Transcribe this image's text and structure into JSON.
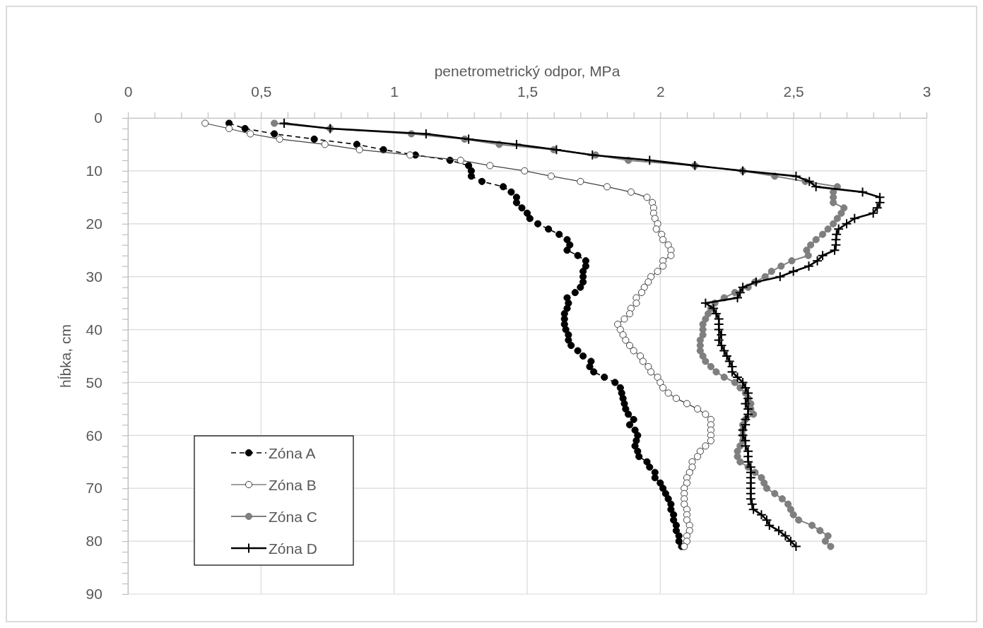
{
  "chart_data": {
    "type": "line",
    "xlabel": "penetrometrický odpor, MPa",
    "ylabel": "hĺbka, cm",
    "xlim": [
      0,
      3
    ],
    "ylim": [
      90,
      0
    ],
    "xticks": [
      0,
      {
        "value": 0.1,
        "label": null
      },
      {
        "value": 0.2,
        "label": null
      },
      {
        "value": 0.3,
        "label": null
      },
      {
        "value": 0.4,
        "label": null
      },
      {
        "value": 0.5,
        "label": "0,5"
      },
      {
        "value": 0.6,
        "label": null
      },
      {
        "value": 0.7,
        "label": null
      },
      {
        "value": 0.8,
        "label": null
      },
      {
        "value": 0.9,
        "label": null
      },
      1,
      {
        "value": 1.1,
        "label": null
      },
      {
        "value": 1.2,
        "label": null
      },
      {
        "value": 1.3,
        "label": null
      },
      {
        "value": 1.4,
        "label": null
      },
      {
        "value": 1.5,
        "label": "1,5"
      },
      {
        "value": 1.6,
        "label": null
      },
      {
        "value": 1.7,
        "label": null
      },
      {
        "value": 1.8,
        "label": null
      },
      {
        "value": 1.9,
        "label": null
      },
      2,
      {
        "value": 2.1,
        "label": null
      },
      {
        "value": 2.2,
        "label": null
      },
      {
        "value": 2.3,
        "label": null
      },
      {
        "value": 2.4,
        "label": null
      },
      {
        "value": 2.5,
        "label": "2,5"
      },
      {
        "value": 2.6,
        "label": null
      },
      {
        "value": 2.7,
        "label": null
      },
      {
        "value": 2.8,
        "label": null
      },
      {
        "value": 2.9,
        "label": null
      },
      3
    ],
    "yticks": [
      0,
      {
        "value": 2,
        "label": null
      },
      {
        "value": 4,
        "label": null
      },
      {
        "value": 6,
        "label": null
      },
      {
        "value": 8,
        "label": null
      },
      10,
      {
        "value": 12,
        "label": null
      },
      {
        "value": 14,
        "label": null
      },
      {
        "value": 16,
        "label": null
      },
      {
        "value": 18,
        "label": null
      },
      20,
      {
        "value": 22,
        "label": null
      },
      {
        "value": 24,
        "label": null
      },
      {
        "value": 26,
        "label": null
      },
      {
        "value": 28,
        "label": null
      },
      30,
      {
        "value": 32,
        "label": null
      },
      {
        "value": 34,
        "label": null
      },
      {
        "value": 36,
        "label": null
      },
      {
        "value": 38,
        "label": null
      },
      40,
      {
        "value": 42,
        "label": null
      },
      {
        "value": 44,
        "label": null
      },
      {
        "value": 46,
        "label": null
      },
      {
        "value": 48,
        "label": null
      },
      50,
      {
        "value": 52,
        "label": null
      },
      {
        "value": 54,
        "label": null
      },
      {
        "value": 56,
        "label": null
      },
      {
        "value": 58,
        "label": null
      },
      60,
      {
        "value": 62,
        "label": null
      },
      {
        "value": 64,
        "label": null
      },
      {
        "value": 66,
        "label": null
      },
      {
        "value": 68,
        "label": null
      },
      70,
      {
        "value": 72,
        "label": null
      },
      {
        "value": 74,
        "label": null
      },
      {
        "value": 76,
        "label": null
      },
      {
        "value": 78,
        "label": null
      },
      80,
      {
        "value": 82,
        "label": null
      },
      {
        "value": 84,
        "label": null
      },
      {
        "value": 86,
        "label": null
      },
      {
        "value": 88,
        "label": null
      },
      90
    ],
    "grid": true,
    "legend": "bottom left",
    "series": [
      {
        "name": "Zóna A",
        "color": "#000000",
        "marker": "circle",
        "line_style": "dashed",
        "x": [
          0.38,
          0.44,
          0.55,
          0.7,
          0.86,
          0.96,
          1.08,
          1.21,
          1.28,
          1.29,
          1.29,
          1.33,
          1.41,
          1.44,
          1.46,
          1.46,
          1.48,
          1.5,
          1.51,
          1.54,
          1.58,
          1.62,
          1.65,
          1.66,
          1.65,
          1.69,
          1.72,
          1.72,
          1.71,
          1.71,
          1.71,
          1.7,
          1.68,
          1.65,
          1.655,
          1.65,
          1.64,
          1.64,
          1.64,
          1.645,
          1.655,
          1.655,
          1.665,
          1.69,
          1.71,
          1.74,
          1.735,
          1.75,
          1.79,
          1.83,
          1.85,
          1.855,
          1.86,
          1.865,
          1.87,
          1.88,
          1.9,
          1.885,
          1.905,
          1.915,
          1.91,
          1.905,
          1.915,
          1.92,
          1.95,
          1.96,
          1.98,
          1.98,
          2.0,
          2.01,
          2.02,
          2.03,
          2.04,
          2.04,
          2.05,
          2.05,
          2.06,
          2.06,
          2.07,
          2.07,
          2.08
        ],
        "values": [
          1,
          2,
          3,
          4,
          5,
          6,
          7,
          8,
          9,
          10,
          11,
          12,
          13,
          14,
          15,
          16,
          17,
          18,
          19,
          20,
          21,
          22,
          23,
          24,
          25,
          26,
          27,
          28,
          29,
          30,
          31,
          32,
          33,
          34,
          35,
          36,
          37,
          38,
          39,
          40,
          41,
          42,
          43,
          44,
          45,
          46,
          47,
          48,
          49,
          50,
          51,
          52,
          53,
          54,
          55,
          56,
          57,
          58,
          59,
          60,
          61,
          62,
          63,
          64,
          65,
          66,
          67,
          68,
          69,
          70,
          71,
          72,
          73,
          74,
          75,
          76,
          77,
          78,
          79,
          80,
          81
        ]
      },
      {
        "name": "Zóna B",
        "color": "#404040",
        "marker": "circle",
        "line_style": "solid",
        "x": [
          0.29,
          0.38,
          0.46,
          0.57,
          0.74,
          0.87,
          1.06,
          1.25,
          1.36,
          1.49,
          1.59,
          1.7,
          1.8,
          1.89,
          1.95,
          1.97,
          1.975,
          1.975,
          1.98,
          1.99,
          1.985,
          2.005,
          2.01,
          2.03,
          2.04,
          2.04,
          2.01,
          2.01,
          1.99,
          1.965,
          1.955,
          1.94,
          1.93,
          1.91,
          1.91,
          1.89,
          1.885,
          1.865,
          1.84,
          1.85,
          1.86,
          1.87,
          1.885,
          1.9,
          1.925,
          1.935,
          1.955,
          1.965,
          1.99,
          2.0,
          2.01,
          2.03,
          2.06,
          2.1,
          2.14,
          2.17,
          2.19,
          2.19,
          2.19,
          2.19,
          2.19,
          2.17,
          2.15,
          2.14,
          2.12,
          2.12,
          2.11,
          2.1,
          2.1,
          2.09,
          2.09,
          2.09,
          2.09,
          2.1,
          2.1,
          2.1,
          2.11,
          2.11,
          2.1,
          2.1,
          2.09
        ],
        "values": [
          1,
          2,
          3,
          4,
          5,
          6,
          7,
          8,
          9,
          10,
          11,
          12,
          13,
          14,
          15,
          16,
          17,
          18,
          19,
          20,
          21,
          22,
          23,
          24,
          25,
          26,
          27,
          28,
          29,
          30,
          31,
          32,
          33,
          34,
          35,
          36,
          37,
          38,
          39,
          40,
          41,
          42,
          43,
          44,
          45,
          46,
          47,
          48,
          49,
          50,
          51,
          52,
          53,
          54,
          55,
          56,
          57,
          58,
          59,
          60,
          61,
          62,
          63,
          64,
          65,
          66,
          67,
          68,
          69,
          70,
          71,
          72,
          73,
          74,
          75,
          76,
          77,
          78,
          79,
          80,
          81
        ]
      },
      {
        "name": "Zóna C",
        "color": "#7f7f7f",
        "marker": "circle",
        "line_style": "solid",
        "x": [
          0.55,
          0.76,
          1.065,
          1.265,
          1.395,
          1.6,
          1.757,
          1.88,
          2.13,
          2.31,
          2.43,
          2.545,
          2.665,
          2.65,
          2.65,
          2.65,
          2.69,
          2.68,
          2.665,
          2.65,
          2.63,
          2.61,
          2.585,
          2.565,
          2.55,
          2.556,
          2.494,
          2.454,
          2.418,
          2.394,
          2.356,
          2.33,
          2.28,
          2.24,
          2.205,
          2.19,
          2.18,
          2.17,
          2.16,
          2.16,
          2.16,
          2.15,
          2.15,
          2.15,
          2.16,
          2.17,
          2.19,
          2.21,
          2.24,
          2.28,
          2.3,
          2.32,
          2.33,
          2.34,
          2.34,
          2.35,
          2.32,
          2.31,
          2.31,
          2.31,
          2.31,
          2.3,
          2.29,
          2.29,
          2.3,
          2.33,
          2.356,
          2.38,
          2.39,
          2.4,
          2.43,
          2.458,
          2.48,
          2.49,
          2.5,
          2.52,
          2.57,
          2.6,
          2.63,
          2.62,
          2.64
        ],
        "values": [
          1,
          2,
          3,
          4,
          5,
          6,
          7,
          8,
          9,
          10,
          11,
          12,
          13,
          14,
          15,
          16,
          17,
          18,
          19,
          20,
          21,
          22,
          23,
          24,
          25,
          26,
          27,
          28,
          29,
          30,
          31,
          32,
          33,
          34,
          35,
          36,
          37,
          38,
          39,
          40,
          41,
          42,
          43,
          44,
          45,
          46,
          47,
          48,
          49,
          50,
          51,
          52,
          53,
          54,
          55,
          56,
          57,
          58,
          59,
          60,
          61,
          62,
          63,
          64,
          65,
          66,
          67,
          68,
          69,
          70,
          71,
          72,
          73,
          74,
          75,
          76,
          77,
          78,
          79,
          80,
          81
        ]
      },
      {
        "name": "Zóna D",
        "color": "#000000",
        "marker": "cross",
        "line_style": "solid",
        "x": [
          0.587,
          0.76,
          1.12,
          1.28,
          1.46,
          1.61,
          1.745,
          1.96,
          2.13,
          2.31,
          2.51,
          2.56,
          2.585,
          2.76,
          2.825,
          2.825,
          2.815,
          2.8,
          2.73,
          2.7,
          2.67,
          2.662,
          2.66,
          2.66,
          2.655,
          2.61,
          2.59,
          2.558,
          2.5,
          2.45,
          2.36,
          2.31,
          2.3,
          2.29,
          2.17,
          2.2,
          2.21,
          2.22,
          2.22,
          2.22,
          2.23,
          2.22,
          2.23,
          2.24,
          2.25,
          2.26,
          2.27,
          2.27,
          2.29,
          2.31,
          2.32,
          2.33,
          2.33,
          2.32,
          2.33,
          2.33,
          2.32,
          2.32,
          2.31,
          2.31,
          2.32,
          2.32,
          2.33,
          2.33,
          2.33,
          2.34,
          2.34,
          2.34,
          2.34,
          2.34,
          2.34,
          2.34,
          2.345,
          2.35,
          2.38,
          2.4,
          2.41,
          2.445,
          2.47,
          2.49,
          2.51
        ],
        "values": [
          1,
          2,
          3,
          4,
          5,
          6,
          7,
          8,
          9,
          10,
          11,
          12,
          13,
          14,
          15,
          16,
          17,
          18,
          19,
          20,
          21,
          22,
          23,
          24,
          25,
          26,
          27,
          28,
          29,
          30,
          31,
          32,
          33,
          34,
          35,
          36,
          37,
          38,
          39,
          40,
          41,
          42,
          43,
          44,
          45,
          46,
          47,
          48,
          49,
          50,
          51,
          52,
          53,
          54,
          55,
          56,
          57,
          58,
          59,
          60,
          61,
          62,
          63,
          64,
          65,
          66,
          67,
          68,
          69,
          70,
          71,
          72,
          73,
          74,
          75,
          76,
          77,
          78,
          79,
          80,
          81
        ]
      }
    ]
  }
}
